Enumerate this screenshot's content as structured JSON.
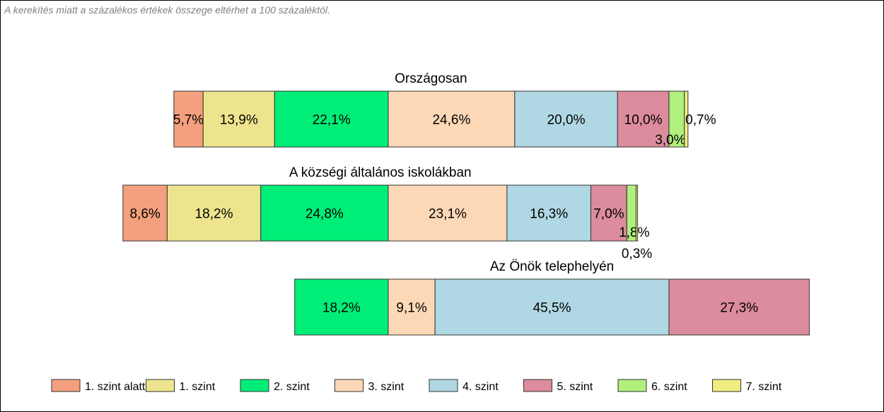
{
  "note": "A kerekítés miatt a  százalékos értékek összege eltérhet a 100 százaléktól.",
  "chart_data": {
    "type": "bar",
    "orientation": "horizontal-stacked",
    "legend_position": "bottom",
    "grid": false,
    "colors": {
      "1. szint alatti": "#F4A07E",
      "1. szint": "#EEE48E",
      "2. szint": "#00EE77",
      "3. szint": "#FDD8B6",
      "4. szint": "#B0D8E4",
      "5. szint": "#DC8C9C",
      "6. szint": "#B0F07C",
      "7. szint": "#F0EE80"
    },
    "legend": [
      "1. szint alatti",
      "1. szint",
      "2. szint",
      "3. szint",
      "4. szint",
      "5. szint",
      "6. szint",
      "7. szint"
    ],
    "groups": [
      {
        "title": "Országosan",
        "values": [
          5.7,
          13.9,
          22.1,
          24.6,
          20.0,
          10.0,
          3.0,
          0.7
        ],
        "labels": [
          "5,7%",
          "13,9%",
          "22,1%",
          "24,6%",
          "20,0%",
          "10,0%",
          "3,0%",
          "0,7%"
        ]
      },
      {
        "title": "A községi általános iskolákban",
        "values": [
          8.6,
          18.2,
          24.8,
          23.1,
          16.3,
          7.0,
          1.8,
          0.3
        ],
        "labels": [
          "8,6%",
          "18,2%",
          "24,8%",
          "23,1%",
          "16,3%",
          "7,0%",
          "1,8%",
          "0,3%"
        ]
      },
      {
        "title": "Az Önök telephelyén",
        "values": [
          0,
          0,
          18.2,
          9.1,
          45.5,
          27.3,
          0,
          0
        ],
        "labels": [
          "",
          "",
          "18,2%",
          "9,1%",
          "45,5%",
          "27,3%",
          "",
          ""
        ]
      }
    ]
  }
}
